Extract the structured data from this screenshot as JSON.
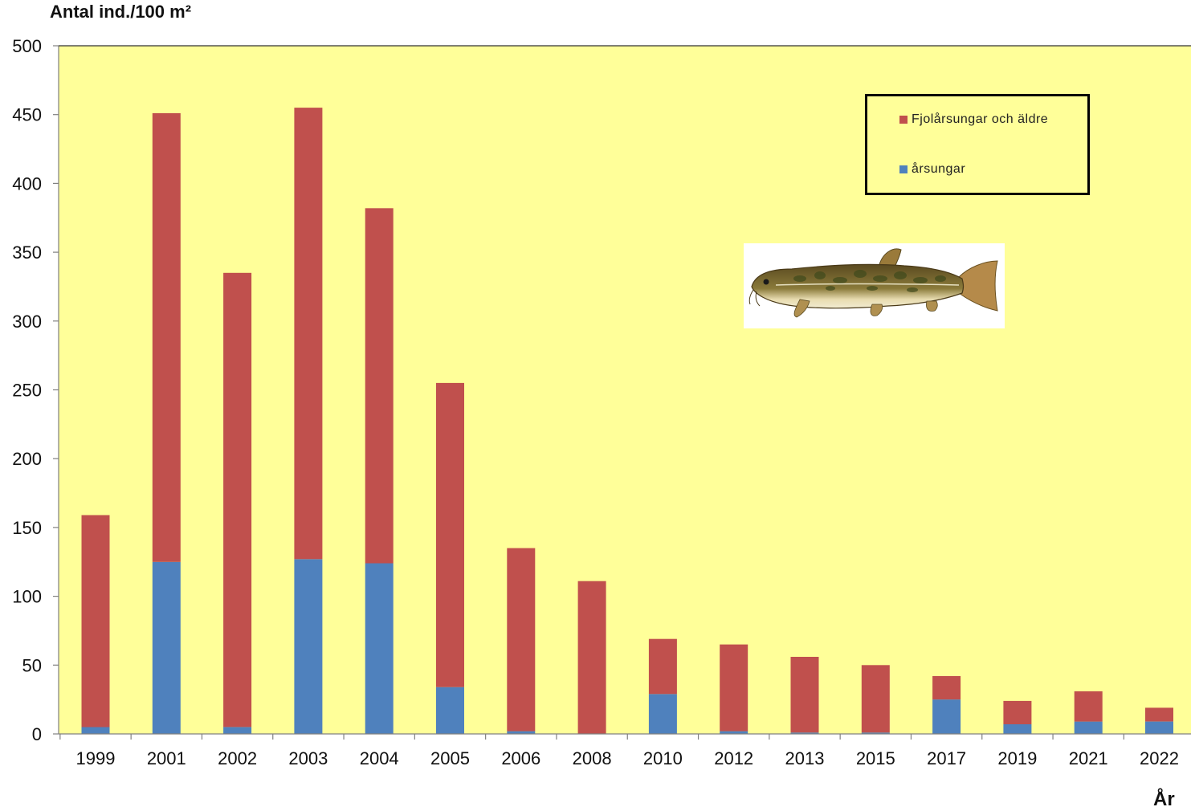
{
  "chart_data": {
    "type": "bar",
    "stacked": true,
    "ylabel": "Antal ind./100 m²",
    "xlabel": "År",
    "ylim": [
      0,
      500
    ],
    "yticks": [
      0,
      50,
      100,
      150,
      200,
      250,
      300,
      350,
      400,
      450,
      500
    ],
    "categories": [
      "1999",
      "2001",
      "2002",
      "2003",
      "2004",
      "2005",
      "2006",
      "2008",
      "2010",
      "2012",
      "2013",
      "2015",
      "2017",
      "2019",
      "2021",
      "2022"
    ],
    "series": [
      {
        "name": "årsungar",
        "color": "#4f81bd",
        "values": [
          5,
          125,
          5,
          127,
          124,
          34,
          2,
          0,
          29,
          2,
          1,
          1,
          25,
          7,
          9,
          9
        ]
      },
      {
        "name": "Fjolårsungar och äldre",
        "color": "#c0504d",
        "values": [
          154,
          326,
          330,
          328,
          258,
          221,
          133,
          111,
          40,
          63,
          55,
          49,
          17,
          17,
          22,
          10
        ]
      }
    ],
    "legend_position": "top-right",
    "plot_background": "#ffff99",
    "grid": false
  },
  "legend": {
    "items": [
      {
        "label": "Fjolårsungar och äldre",
        "color": "#c0504d"
      },
      {
        "label": "årsungar",
        "color": "#4f81bd"
      }
    ]
  }
}
